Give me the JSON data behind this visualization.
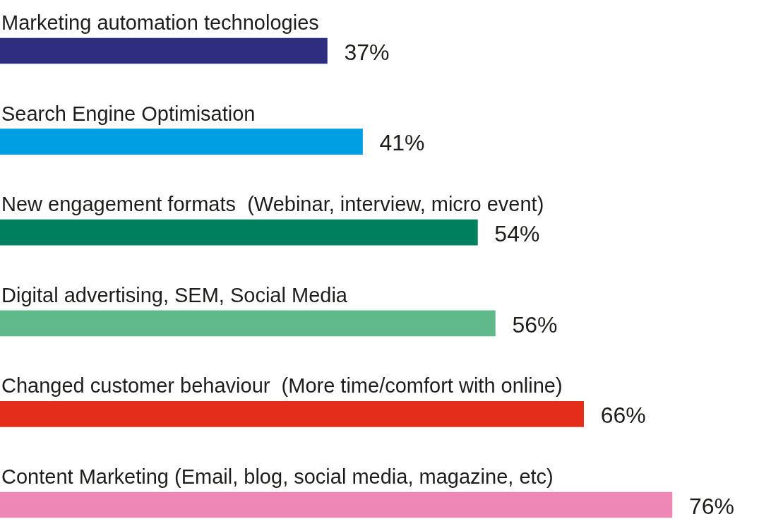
{
  "chart_data": {
    "type": "bar",
    "orientation": "horizontal",
    "categories": [
      "Marketing automation technologies",
      "Search Engine Optimisation",
      "New engagement formats  (Webinar, interview, micro event)",
      "Digital advertising, SEM, Social Media",
      "Changed customer behaviour  (More time/comfort with online)",
      "Content Marketing (Email, blog, social media, magazine, etc)"
    ],
    "values": [
      37,
      41,
      54,
      56,
      66,
      76
    ],
    "colors": [
      "#2e2d80",
      "#009fe3",
      "#007f5f",
      "#5fb98a",
      "#e42e1b",
      "#ee87b5"
    ],
    "value_labels": [
      "37%",
      "41%",
      "54%",
      "56%",
      "66%",
      "76%"
    ]
  }
}
